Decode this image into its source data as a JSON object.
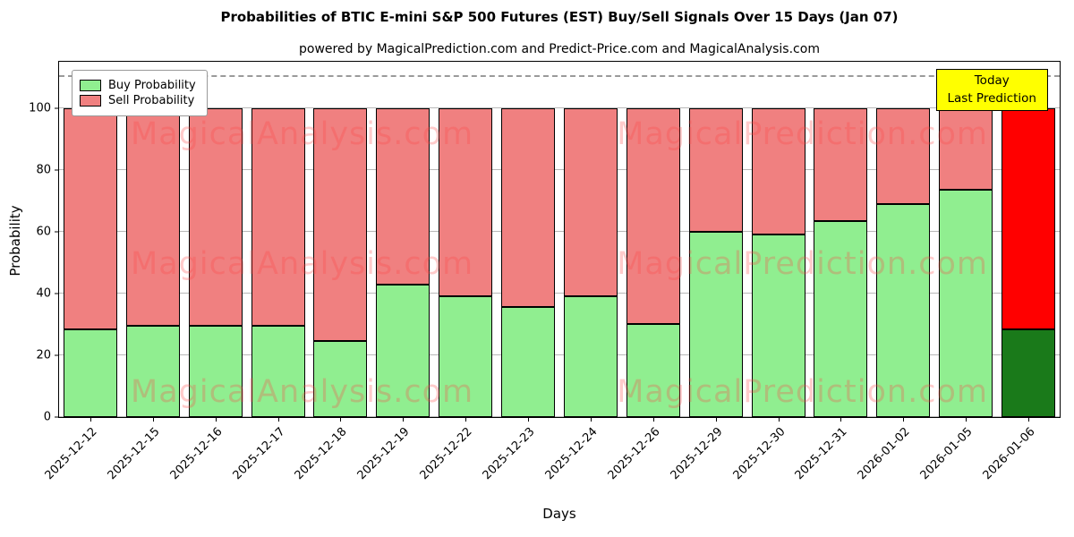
{
  "title": "Probabilities of BTIC E-mini S&P 500 Futures (EST) Buy/Sell Signals Over 15 Days (Jan 07)",
  "subtitle": "powered by MagicalPrediction.com and Predict-Price.com and MagicalAnalysis.com",
  "xlabel": "Days",
  "ylabel": "Probability",
  "legend": {
    "buy_label": "Buy Probability",
    "sell_label": "Sell Probability"
  },
  "annotation": {
    "line1": "Today",
    "line2": "Last Prediction"
  },
  "watermarks": [
    "MagicalAnalysis.com",
    "MagicalPrediction.com"
  ],
  "colors": {
    "buy": "#90ee90",
    "sell": "#f08080",
    "today_buy": "#1a7a1a",
    "today_sell": "#ff0000",
    "annotation_bg": "#ffff00",
    "grid": "#b8b8b8"
  },
  "chart_data": {
    "type": "bar",
    "stacked": true,
    "title": "Probabilities of BTIC E-mini S&P 500 Futures (EST) Buy/Sell Signals Over 15 Days (Jan 07)",
    "xlabel": "Days",
    "ylabel": "Probability",
    "ylim": [
      0,
      115
    ],
    "yticks": [
      0,
      20,
      40,
      60,
      80,
      100
    ],
    "dashed_line_y": 110,
    "grid": true,
    "legend_position": "upper left",
    "categories": [
      "2025-12-12",
      "2025-12-15",
      "2025-12-16",
      "2025-12-17",
      "2025-12-18",
      "2025-12-19",
      "2025-12-22",
      "2025-12-23",
      "2025-12-24",
      "2025-12-26",
      "2025-12-29",
      "2025-12-30",
      "2025-12-31",
      "2026-01-02",
      "2026-01-05",
      "2026-01-06"
    ],
    "series": [
      {
        "name": "Buy Probability",
        "values": [
          28.5,
          29.5,
          29.5,
          29.5,
          24.5,
          43,
          39,
          35.5,
          39,
          30,
          60,
          59,
          63.5,
          69,
          73.5,
          28.5
        ]
      },
      {
        "name": "Sell Probability",
        "values": [
          71.5,
          70.5,
          70.5,
          70.5,
          75.5,
          57,
          61,
          64.5,
          61,
          70,
          40,
          41,
          36.5,
          31,
          26.5,
          71.5
        ]
      }
    ],
    "today_index": 15
  }
}
